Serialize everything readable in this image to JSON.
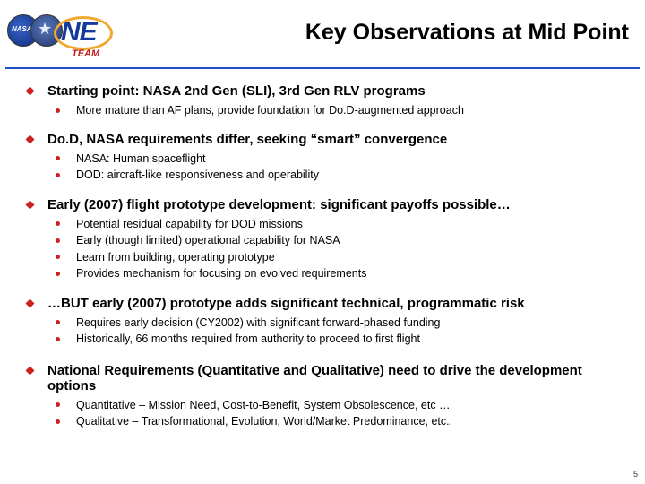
{
  "header": {
    "logo": {
      "nasa_text": "NASA",
      "ne_text": "NE",
      "team_text": "TEAM"
    },
    "title": "Key Observations at Mid Point"
  },
  "sections": [
    {
      "text": "Starting point: NASA 2nd Gen (SLI), 3rd Gen RLV programs",
      "subs": [
        "More mature than AF plans, provide foundation for Do.D-augmented approach"
      ]
    },
    {
      "text": "Do.D, NASA requirements differ, seeking “smart” convergence",
      "subs": [
        "NASA: Human spaceflight",
        "DOD: aircraft-like responsiveness and operability"
      ]
    },
    {
      "text": "Early (2007) flight prototype development: significant payoffs possible…",
      "subs": [
        "Potential residual capability for DOD missions",
        "Early (though limited) operational capability for NASA",
        "Learn from building, operating prototype",
        "Provides mechanism for focusing on evolved requirements"
      ]
    },
    {
      "text": "…BUT early (2007) prototype adds significant technical, programmatic risk",
      "subs": [
        "Requires early decision (CY2002) with significant forward-phased funding",
        "Historically, 66 months required from authority to proceed to first flight"
      ]
    },
    {
      "text": "National Requirements (Quantitative and Qualitative) need to drive the development options",
      "subs": [
        "Quantitative – Mission Need, Cost-to-Benefit, System Obsolescence, etc …",
        "Qualitative – Transformational, Evolution, World/Market Predominance, etc.."
      ]
    }
  ],
  "footer": {
    "page_number": "5"
  },
  "colors": {
    "accent": "#1f4fbf",
    "bullet": "#cc2020"
  }
}
